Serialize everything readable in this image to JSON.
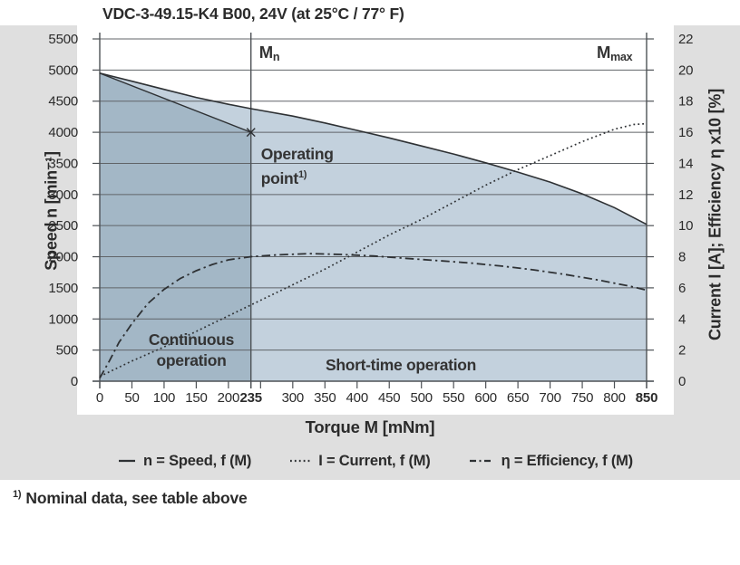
{
  "page": {
    "title": "VDC-3-49.15-K4 B00, 24V (at 25°C / 77° F)",
    "footnote": {
      "sup": "1)",
      "text": "Nominal data, see table above"
    }
  },
  "colors": {
    "page_gray": "#dfdfdf",
    "panel_white": "#ffffff",
    "region_continuous": "#a3b7c6",
    "region_short_time": "#c3d1dd",
    "gridline": "#606468",
    "axis": "#4e5256",
    "curve": "#2e3134"
  },
  "legend": {
    "items": [
      {
        "icon": "solid-line",
        "label": "n = Speed, f (M)"
      },
      {
        "icon": "dotted-line",
        "label": "I = Current, f (M)"
      },
      {
        "icon": "dashdot-line",
        "label": "η = Efficiency, f (M)"
      }
    ]
  },
  "chart_data": {
    "type": "line",
    "title": "VDC-3-49.15-K4 B00, 24V (at 25°C / 77° F)",
    "xlabel": "Torque M [mNm]",
    "ylabel_left": "Speed n [min⁻¹]",
    "ylabel_right": "Current I [A]; Efficiency η x10 [%]",
    "xlim": [
      0,
      850
    ],
    "ylim_left": [
      0,
      5500
    ],
    "ylim_right": [
      0,
      22
    ],
    "grid": "horizontal",
    "legend_position": "bottom",
    "mn_line_x": 235,
    "x_ticks": [
      {
        "v": 0,
        "label": "0"
      },
      {
        "v": 50,
        "label": "50"
      },
      {
        "v": 100,
        "label": "100"
      },
      {
        "v": 150,
        "label": "150"
      },
      {
        "v": 200,
        "label": "200"
      },
      {
        "v": 235,
        "label": "235",
        "bold": true
      },
      {
        "v": 250,
        "label": ""
      },
      {
        "v": 300,
        "label": "300"
      },
      {
        "v": 350,
        "label": "350"
      },
      {
        "v": 400,
        "label": "400"
      },
      {
        "v": 450,
        "label": "450"
      },
      {
        "v": 500,
        "label": "500"
      },
      {
        "v": 550,
        "label": "550"
      },
      {
        "v": 600,
        "label": "600"
      },
      {
        "v": 650,
        "label": "650"
      },
      {
        "v": 700,
        "label": "700"
      },
      {
        "v": 750,
        "label": "750"
      },
      {
        "v": 800,
        "label": "800"
      },
      {
        "v": 850,
        "label": "850",
        "bold": true
      }
    ],
    "y_ticks_left": [
      5500,
      5000,
      4500,
      4000,
      3500,
      3000,
      2500,
      2000,
      1500,
      1000,
      500,
      0
    ],
    "y_ticks_right": [
      22,
      20,
      18,
      16,
      14,
      12,
      10,
      8,
      6,
      4,
      2,
      0
    ],
    "series": [
      {
        "name": "Speed",
        "axis": "left",
        "style": "solid",
        "points": [
          [
            0,
            4950
          ],
          [
            50,
            4820
          ],
          [
            100,
            4690
          ],
          [
            150,
            4560
          ],
          [
            200,
            4450
          ],
          [
            235,
            4380
          ],
          [
            300,
            4260
          ],
          [
            350,
            4150
          ],
          [
            400,
            4030
          ],
          [
            450,
            3910
          ],
          [
            500,
            3780
          ],
          [
            550,
            3650
          ],
          [
            600,
            3510
          ],
          [
            650,
            3360
          ],
          [
            700,
            3200
          ],
          [
            750,
            3010
          ],
          [
            800,
            2790
          ],
          [
            850,
            2520
          ]
        ]
      },
      {
        "name": "Current",
        "axis": "right",
        "style": "dotted",
        "points": [
          [
            0,
            0.3
          ],
          [
            50,
            1.3
          ],
          [
            100,
            2.2
          ],
          [
            150,
            3.2
          ],
          [
            200,
            4.2
          ],
          [
            235,
            4.9
          ],
          [
            300,
            6.2
          ],
          [
            350,
            7.2
          ],
          [
            400,
            8.3
          ],
          [
            450,
            9.4
          ],
          [
            500,
            10.4
          ],
          [
            550,
            11.5
          ],
          [
            600,
            12.6
          ],
          [
            650,
            13.6
          ],
          [
            700,
            14.5
          ],
          [
            750,
            15.4
          ],
          [
            800,
            16.2
          ],
          [
            830,
            16.5
          ],
          [
            850,
            16.55
          ]
        ]
      },
      {
        "name": "Efficiency",
        "axis": "right",
        "style": "dashdot",
        "points": [
          [
            0,
            0.2
          ],
          [
            15,
            1.3
          ],
          [
            30,
            2.5
          ],
          [
            50,
            3.7
          ],
          [
            75,
            5.0
          ],
          [
            100,
            5.9
          ],
          [
            125,
            6.6
          ],
          [
            150,
            7.1
          ],
          [
            175,
            7.5
          ],
          [
            200,
            7.8
          ],
          [
            235,
            8.0
          ],
          [
            275,
            8.12
          ],
          [
            325,
            8.2
          ],
          [
            375,
            8.15
          ],
          [
            425,
            8.05
          ],
          [
            475,
            7.9
          ],
          [
            525,
            7.75
          ],
          [
            575,
            7.6
          ],
          [
            625,
            7.4
          ],
          [
            675,
            7.15
          ],
          [
            725,
            6.85
          ],
          [
            775,
            6.5
          ],
          [
            825,
            6.1
          ],
          [
            850,
            5.85
          ]
        ]
      },
      {
        "name": "Rated load line",
        "axis": "left",
        "style": "solid",
        "points": [
          [
            0,
            4950
          ],
          [
            235,
            4000
          ]
        ]
      }
    ],
    "operating_point": {
      "m": 235,
      "n": 4000,
      "marker": "x"
    },
    "annotations": {
      "mn": {
        "main": "M",
        "sub": "n"
      },
      "mmax": {
        "main": "M",
        "sub": "max"
      },
      "operating_point": {
        "lines": [
          "Operating",
          "point"
        ],
        "sup": "1)"
      },
      "continuous": {
        "lines": [
          "Continuous",
          "operation"
        ]
      },
      "short_time": {
        "lines": [
          "Short-time operation"
        ]
      }
    },
    "regions": [
      {
        "name": "short-time-operation",
        "fill_under": "Speed",
        "from": 0,
        "to": 850,
        "color_key": "region_short_time"
      },
      {
        "name": "continuous-operation",
        "fill_under": "Rated load line",
        "from": 0,
        "to": 235,
        "color_key": "region_continuous"
      }
    ]
  }
}
